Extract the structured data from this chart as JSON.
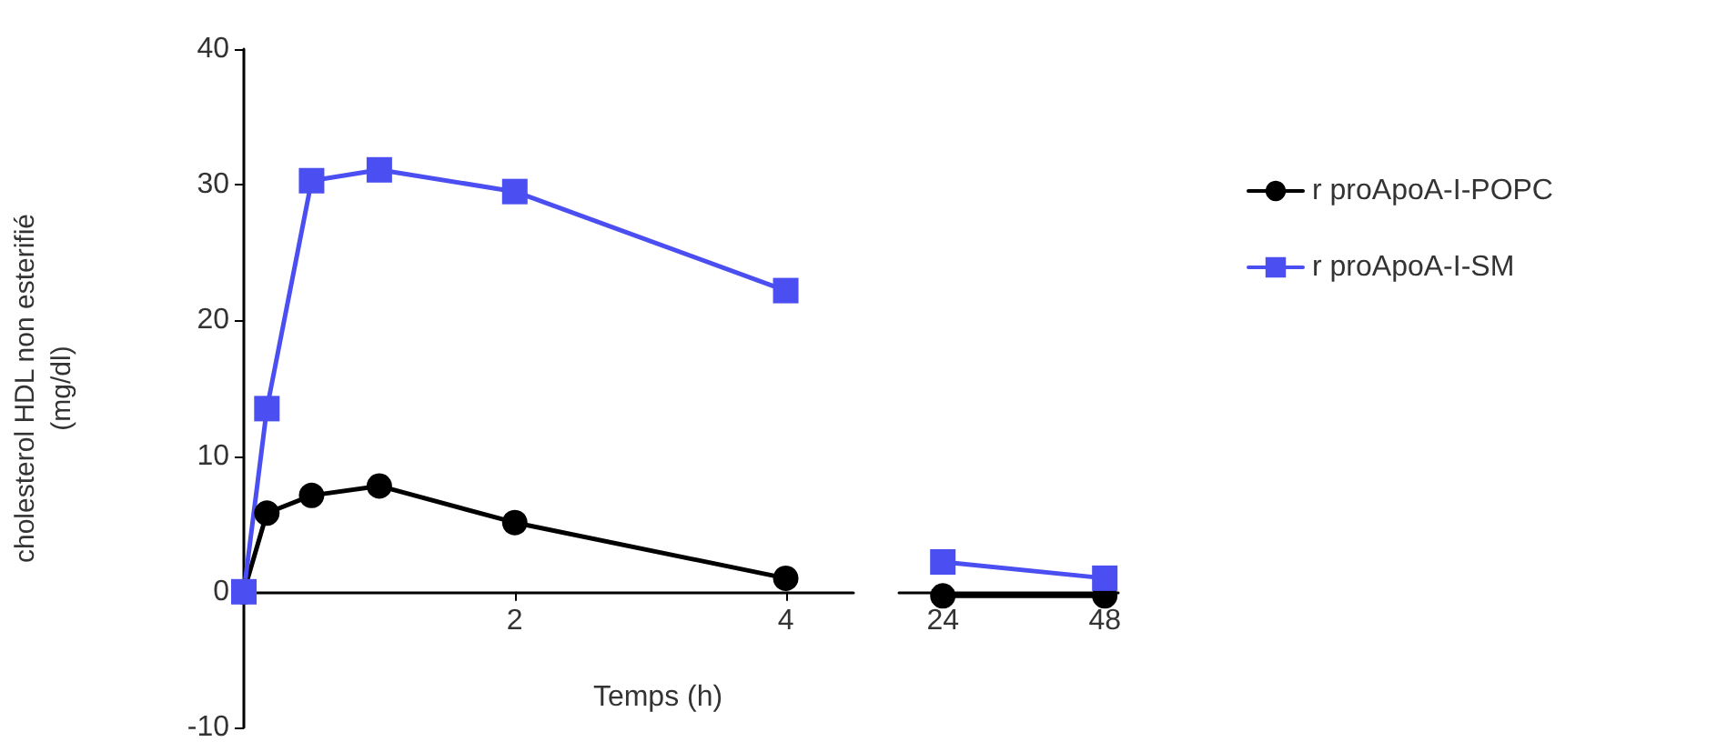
{
  "chart_data": [
    {
      "type": "line",
      "xlabel": "Temps (h)",
      "ylabel": "cholesterol HDL non esterifié\n(mg/dl)",
      "x": [
        0,
        0.17,
        0.5,
        1,
        2,
        4
      ],
      "xlim": [
        0,
        4.5
      ],
      "xticks": [
        2,
        4
      ],
      "ylim": [
        -10,
        40
      ],
      "yticks": [
        -10,
        0,
        10,
        20,
        30,
        40
      ],
      "legend": "right",
      "grid": false,
      "line_style": "solid",
      "series": [
        {
          "name": "r proApoA-I-POPC",
          "color": "#000000",
          "marker": "circle",
          "values": [
            0,
            5.8,
            7.1,
            7.8,
            5.1,
            1.0
          ]
        },
        {
          "name": "r proApoA-I-SM",
          "color": "#4b4ef0",
          "marker": "square",
          "values": [
            0,
            13.5,
            30.3,
            31.1,
            29.5,
            22.2
          ]
        }
      ]
    },
    {
      "type": "line",
      "x": [
        24,
        48
      ],
      "xlim": [
        17.5,
        50
      ],
      "xticks": [
        24,
        48
      ],
      "ylim": [
        -10,
        40
      ],
      "tick_labels": "x",
      "grid": false,
      "line_style": "solid",
      "series": [
        {
          "color": "#000000",
          "marker": "circle",
          "values": [
            -0.3,
            -0.3
          ]
        },
        {
          "color": "#4b4ef0",
          "marker": "square",
          "values": [
            2.2,
            1.0
          ]
        }
      ]
    }
  ]
}
